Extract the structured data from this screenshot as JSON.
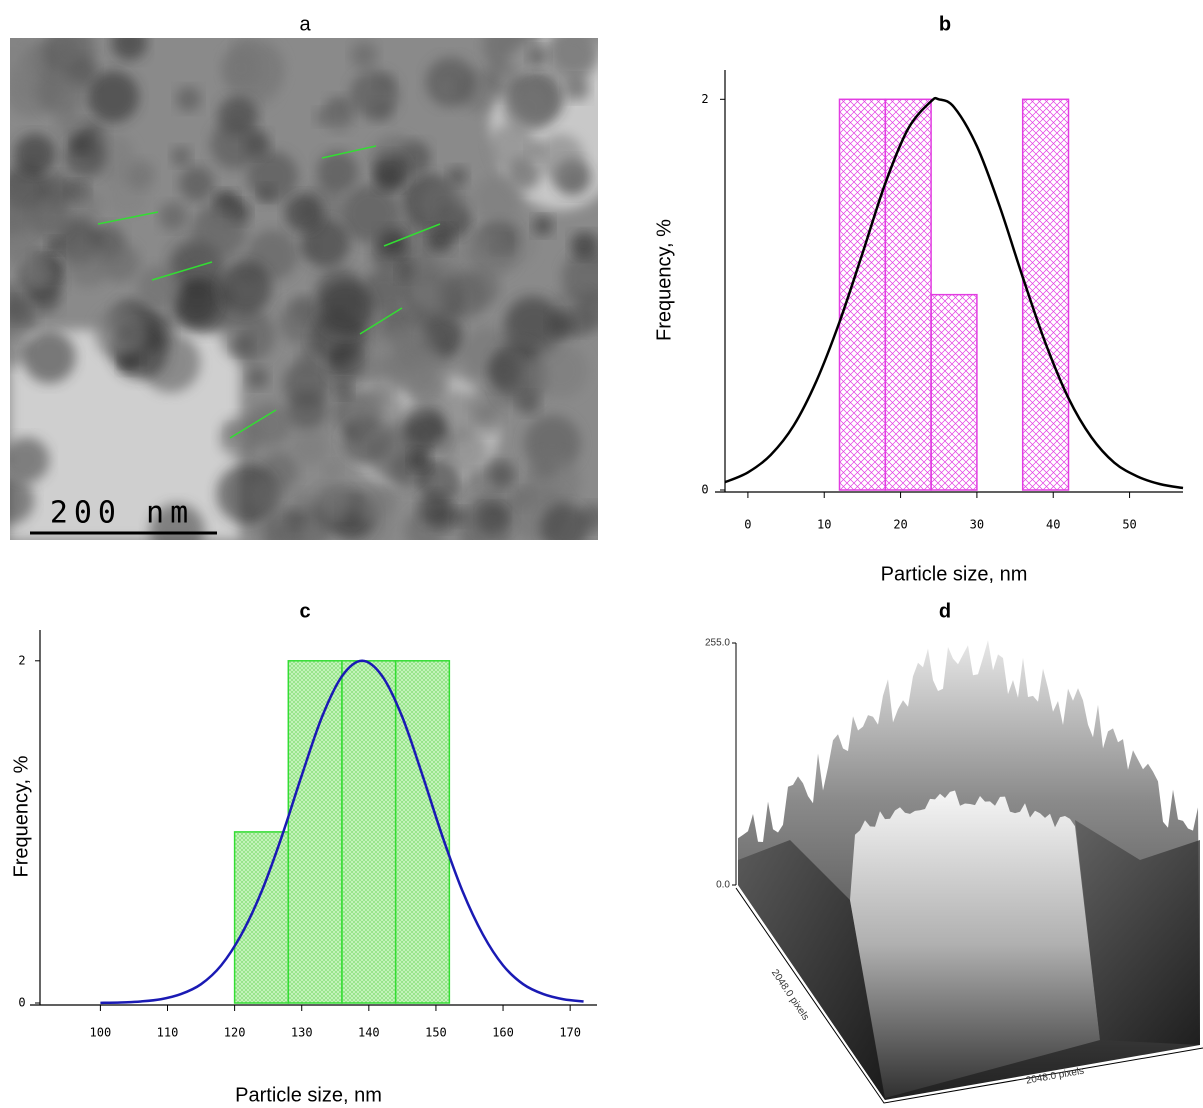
{
  "chart_data": [
    {
      "type": "image",
      "title": "a",
      "scale_bar": "200 nm"
    },
    {
      "type": "histogram",
      "title": "b",
      "bins": [
        12,
        18,
        24,
        30,
        36,
        42
      ],
      "values": [
        2,
        2,
        1,
        0,
        2
      ],
      "color": "#e23de2",
      "curve": {
        "x": [
          -3,
          0,
          3,
          6,
          9,
          12,
          15,
          18,
          21,
          24,
          25,
          27,
          30,
          33,
          36,
          39,
          42,
          45,
          48,
          51,
          54,
          57
        ],
        "values": [
          0.04,
          0.09,
          0.18,
          0.33,
          0.56,
          0.86,
          1.21,
          1.57,
          1.85,
          1.99,
          2,
          1.96,
          1.76,
          1.45,
          1.09,
          0.75,
          0.47,
          0.27,
          0.14,
          0.07,
          0.03,
          0.01
        ],
        "color": "#000000"
      },
      "xlim": [
        -3,
        57
      ],
      "xticks": [
        0,
        10,
        20,
        30,
        40,
        50
      ],
      "ylim": [
        0,
        2.15
      ],
      "yticks": [
        0,
        2
      ],
      "xlabel": "Particle size, nm",
      "ylabel": "Frequency, %"
    },
    {
      "type": "histogram",
      "title": "c",
      "bins": [
        120,
        128,
        136,
        144,
        152
      ],
      "values": [
        1,
        2,
        2,
        2
      ],
      "color": "#33dd33",
      "curve": {
        "x": [
          100,
          103,
          106,
          109,
          112,
          115,
          118,
          121,
          124,
          127,
          130,
          133,
          136,
          139,
          142,
          145,
          148,
          151,
          154,
          157,
          160,
          163,
          166,
          169,
          172
        ],
        "values": [
          0.001,
          0.003,
          0.009,
          0.022,
          0.052,
          0.11,
          0.22,
          0.4,
          0.65,
          0.97,
          1.33,
          1.67,
          1.91,
          2,
          1.91,
          1.67,
          1.33,
          0.97,
          0.65,
          0.4,
          0.22,
          0.11,
          0.052,
          0.022,
          0.009
        ],
        "color": "#1a1ab4"
      },
      "xlim": [
        91,
        174
      ],
      "xticks": [
        100,
        110,
        120,
        130,
        140,
        150,
        160,
        170
      ],
      "ylim": [
        0,
        2.18
      ],
      "yticks": [
        0,
        2
      ],
      "xlabel": "Particle size, nm",
      "ylabel": "Frequency, %"
    },
    {
      "type": "surface",
      "title": "d",
      "zlim": [
        0,
        255
      ],
      "zticks": [
        {
          "value": 255,
          "label": "255.0"
        },
        {
          "value": 0,
          "label": "0.0"
        }
      ],
      "xlabel": "2048.0 pixels",
      "ylabel": "2048.0 pixels"
    }
  ]
}
